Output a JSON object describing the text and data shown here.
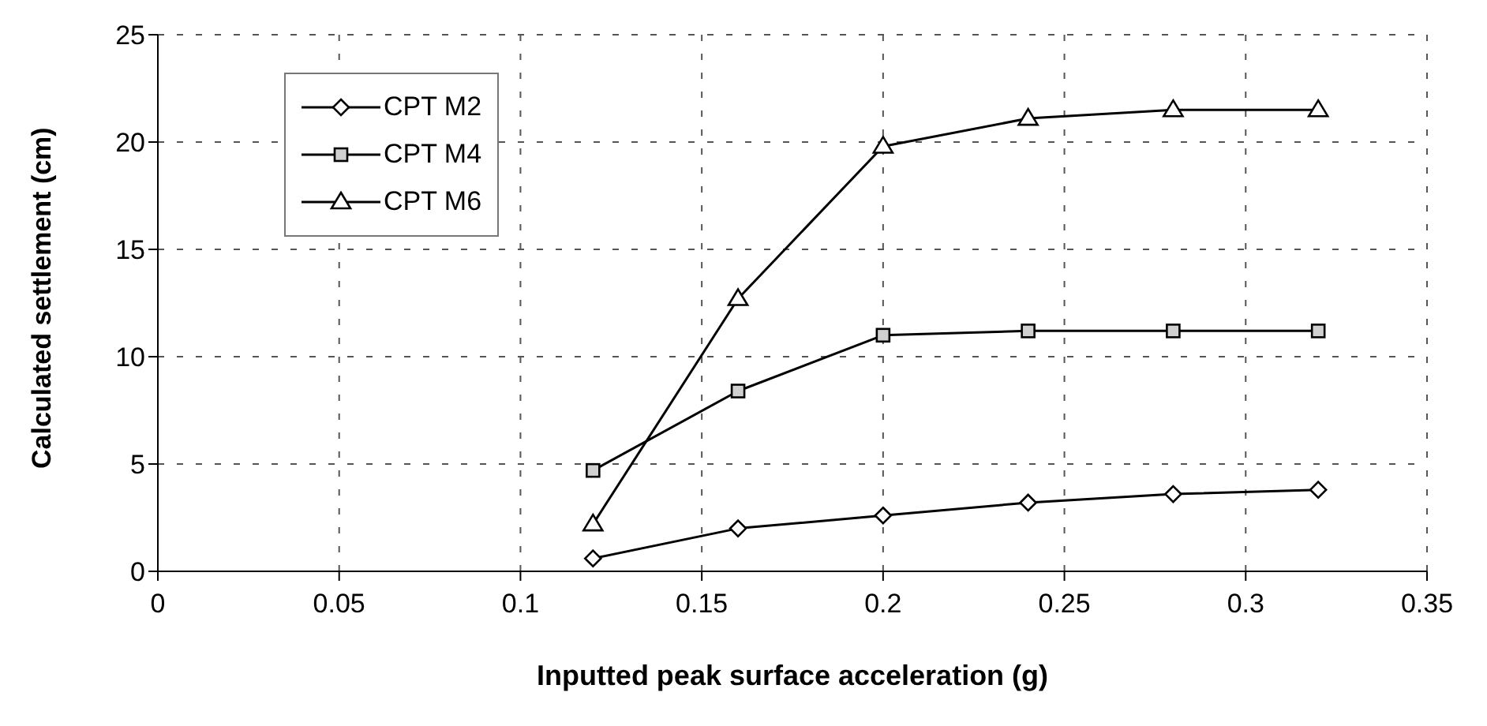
{
  "chart_data": {
    "type": "line",
    "xlabel": "Inputted peak surface acceleration (g)",
    "ylabel": "Calculated settlement (cm)",
    "x": [
      0.12,
      0.16,
      0.2,
      0.24,
      0.28,
      0.32
    ],
    "xlim": [
      0,
      0.35
    ],
    "xticks": [
      0,
      0.05,
      0.1,
      0.15,
      0.2,
      0.25,
      0.3,
      0.35
    ],
    "ylim": [
      0,
      25
    ],
    "yticks": [
      0,
      5,
      10,
      15,
      20,
      25
    ],
    "grid": true,
    "legend": "top left",
    "line_style": "solid",
    "series": [
      {
        "name": "CPT M2",
        "color": "#000000",
        "marker": "diamond",
        "values": [
          0.6,
          2.0,
          2.6,
          3.2,
          3.6,
          3.8
        ]
      },
      {
        "name": "CPT M4",
        "color": "#000000",
        "marker": "square",
        "values": [
          4.7,
          8.4,
          11.0,
          11.2,
          11.2,
          11.2
        ]
      },
      {
        "name": "CPT M6",
        "color": "#000000",
        "marker": "triangle",
        "values": [
          2.2,
          12.7,
          19.8,
          21.1,
          21.5,
          21.5
        ]
      }
    ]
  }
}
